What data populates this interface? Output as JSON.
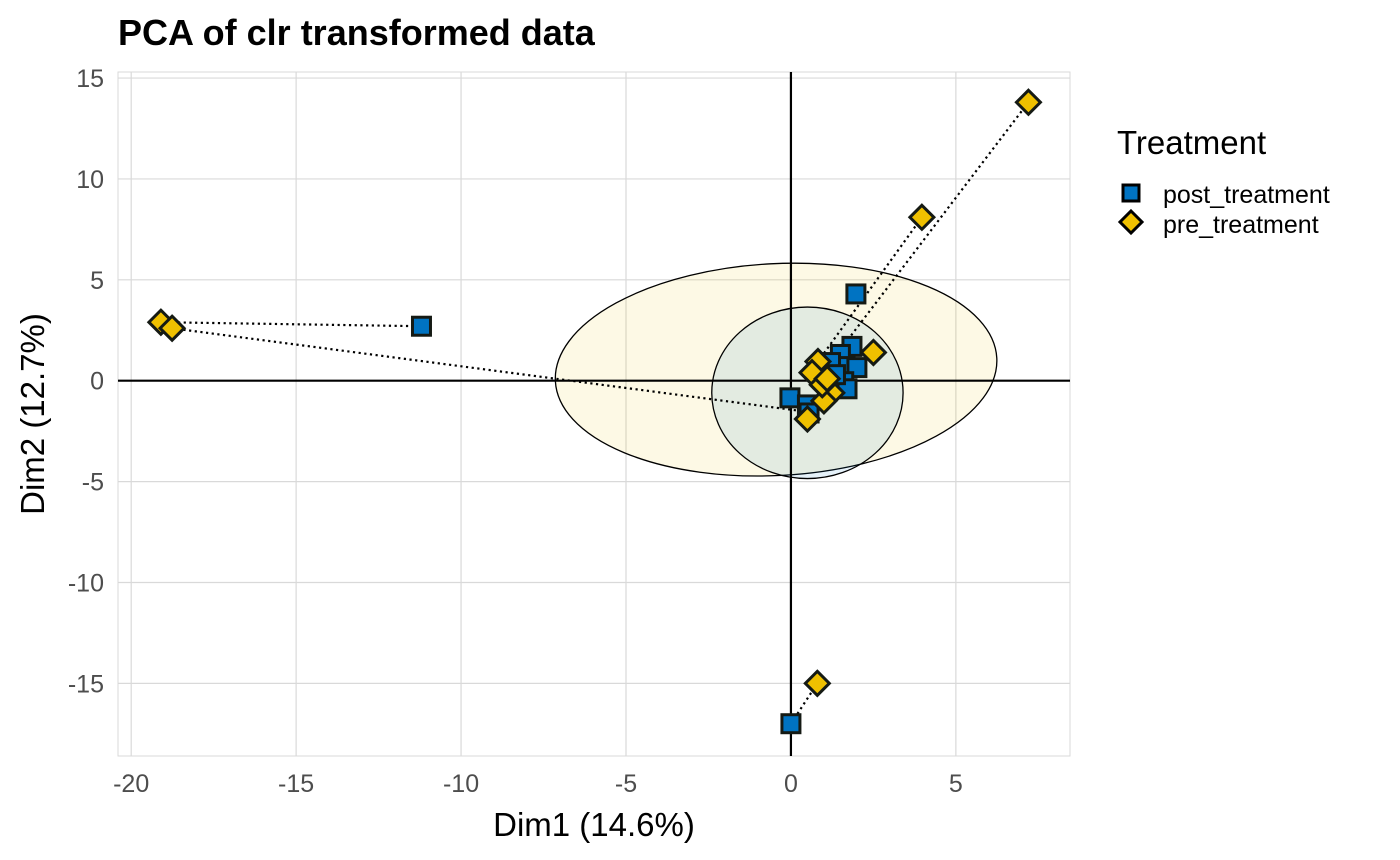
{
  "chart_data": {
    "type": "scatter",
    "title": "PCA of clr transformed data",
    "xlabel": "Dim1 (14.6%)",
    "ylabel": "Dim2 (12.7%)",
    "xlim": [
      -20.4,
      8.46
    ],
    "ylim": [
      -18.6,
      15.3
    ],
    "x_ticks": [
      -20,
      -15,
      -10,
      -5,
      0,
      5
    ],
    "y_ticks": [
      15,
      10,
      5,
      0,
      -5,
      -10,
      -15
    ],
    "x_tick_labels": [
      "-20",
      "-15",
      "-10",
      "-5",
      "0",
      "5"
    ],
    "y_tick_labels": [
      "15",
      "10",
      "5",
      "0",
      "-5",
      "-10",
      "-15"
    ],
    "grid": true,
    "reference_lines": {
      "x": 0,
      "y": 0
    },
    "legend": {
      "title": "Treatment",
      "placement": "right",
      "entries": [
        {
          "label": "post_treatment",
          "shape": "square",
          "color": "#0073C2"
        },
        {
          "label": "pre_treatment",
          "shape": "diamond",
          "color": "#EFC000"
        }
      ]
    },
    "series": [
      {
        "name": "post_treatment",
        "shape": "square",
        "color": "#0073C2",
        "points": [
          {
            "x": -11.2,
            "y": 2.7
          },
          {
            "x": 0.0,
            "y": -17.0
          },
          {
            "x": 1.97,
            "y": 4.3
          },
          {
            "x": -0.03,
            "y": -0.85
          },
          {
            "x": 0.5,
            "y": -1.2
          },
          {
            "x": 0.55,
            "y": -1.6
          },
          {
            "x": 1.85,
            "y": 1.7
          },
          {
            "x": 1.5,
            "y": 1.3
          },
          {
            "x": 1.64,
            "y": 0.7
          },
          {
            "x": 2.0,
            "y": 0.65
          },
          {
            "x": 1.6,
            "y": -0.05
          },
          {
            "x": 1.7,
            "y": -0.4
          },
          {
            "x": 1.2,
            "y": 0.9
          },
          {
            "x": 1.35,
            "y": 0.3
          }
        ]
      },
      {
        "name": "pre_treatment",
        "shape": "diamond",
        "color": "#EFC000",
        "points": [
          {
            "x": -19.1,
            "y": 2.9
          },
          {
            "x": -18.76,
            "y": 2.6
          },
          {
            "x": 0.8,
            "y": -15.0
          },
          {
            "x": 7.2,
            "y": 13.8
          },
          {
            "x": 3.97,
            "y": 8.1
          },
          {
            "x": 0.5,
            "y": -1.9
          },
          {
            "x": 0.82,
            "y": 0.95
          },
          {
            "x": 0.64,
            "y": 0.4
          },
          {
            "x": 2.5,
            "y": 1.4
          },
          {
            "x": 1.24,
            "y": -0.6
          },
          {
            "x": 1.0,
            "y": -1.0
          },
          {
            "x": 0.95,
            "y": -0.2
          },
          {
            "x": 1.1,
            "y": 0.1
          }
        ]
      }
    ],
    "pair_lines": [
      {
        "from": {
          "x": -19.1,
          "y": 2.9
        },
        "to": {
          "x": -11.2,
          "y": 2.7
        }
      },
      {
        "from": {
          "x": -18.76,
          "y": 2.6
        },
        "to": {
          "x": 0.3,
          "y": -1.5
        }
      },
      {
        "from": {
          "x": 0.8,
          "y": -15.0
        },
        "to": {
          "x": 0.0,
          "y": -17.0
        }
      },
      {
        "from": {
          "x": 7.2,
          "y": 13.8
        },
        "to": {
          "x": 1.2,
          "y": 0.9
        }
      },
      {
        "from": {
          "x": 3.97,
          "y": 8.1
        },
        "to": {
          "x": 0.82,
          "y": 0.95
        }
      }
    ],
    "ellipses": [
      {
        "group": "pre_treatment",
        "cx": -0.45,
        "cy": 0.55,
        "rx": 6.7,
        "ry": 5.25,
        "angle": -3,
        "fill": "#EFC000",
        "fill_opacity": 0.1
      },
      {
        "group": "post_treatment",
        "cx": 0.5,
        "cy": -0.6,
        "rx": 2.9,
        "ry": 4.25,
        "angle": 0,
        "fill": "#0073C2",
        "fill_opacity": 0.1
      }
    ]
  }
}
